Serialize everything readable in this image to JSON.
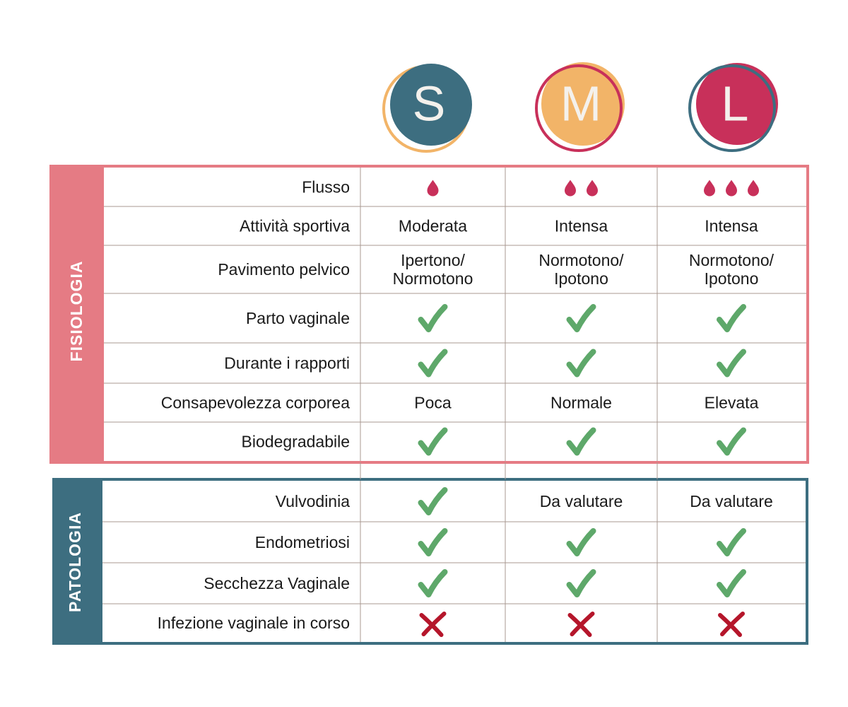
{
  "sizes": [
    "S",
    "M",
    "L"
  ],
  "sections": [
    {
      "label": "FISIOLOGIA",
      "rows": [
        {
          "label": "Flusso",
          "cells": [
            1,
            2,
            3
          ]
        },
        {
          "label": "Attività sportiva",
          "cells": [
            "Moderata",
            "Intensa",
            "Intensa"
          ]
        },
        {
          "label": "Pavimento pelvico",
          "cells": [
            "Ipertono/\nNormotono",
            "Normotono/\nIpotono",
            "Normotono/\nIpotono"
          ]
        },
        {
          "label": "Parto vaginale",
          "cells": [
            true,
            true,
            true
          ]
        },
        {
          "label": "Durante i rapporti",
          "cells": [
            true,
            true,
            true
          ]
        },
        {
          "label": "Consapevolezza corporea",
          "cells": [
            "Poca",
            "Normale",
            "Elevata"
          ]
        },
        {
          "label": "Biodegradabile",
          "cells": [
            true,
            true,
            true
          ]
        }
      ]
    },
    {
      "label": "PATOLOGIA",
      "rows": [
        {
          "label": "Vulvodinia",
          "cells": [
            true,
            "Da valutare",
            "Da valutare"
          ]
        },
        {
          "label": "Endometriosi",
          "cells": [
            true,
            true,
            true
          ]
        },
        {
          "label": "Secchezza Vaginale",
          "cells": [
            true,
            true,
            true
          ]
        },
        {
          "label": "Infezione vaginale in corso",
          "cells": [
            false,
            false,
            false
          ]
        }
      ]
    }
  ]
}
